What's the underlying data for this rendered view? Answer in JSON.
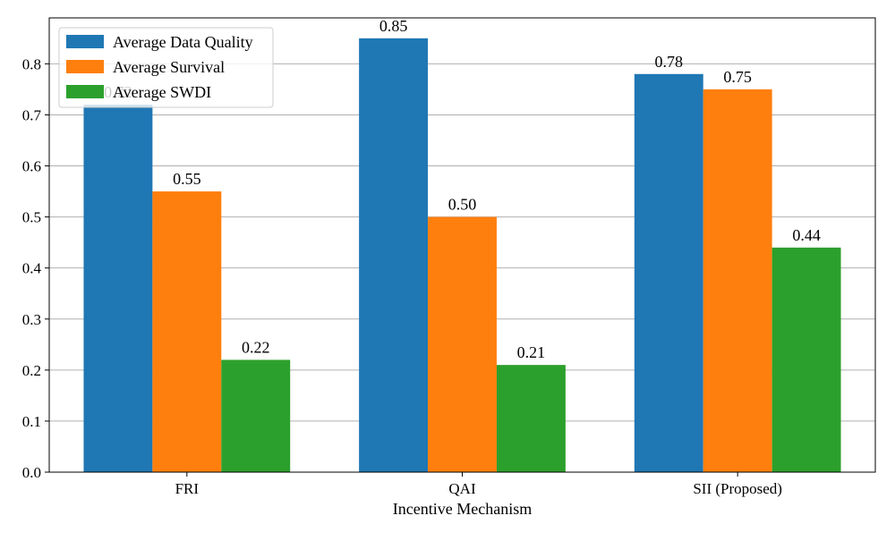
{
  "chart_data": {
    "type": "bar",
    "title": "",
    "xlabel": "Incentive Mechanism",
    "ylabel": "",
    "categories": [
      "FRI",
      "QAI",
      "SII (Proposed)"
    ],
    "series": [
      {
        "name": "Average Data Quality",
        "values": [
          0.72,
          0.85,
          0.78
        ],
        "labels": [
          "0.72",
          "0.85",
          "0.78"
        ],
        "color": "#1f77b4"
      },
      {
        "name": "Average Survival",
        "values": [
          0.55,
          0.5,
          0.75
        ],
        "labels": [
          "0.55",
          "0.50",
          "0.75"
        ],
        "color": "#ff7f0e"
      },
      {
        "name": "Average SWDI",
        "values": [
          0.22,
          0.21,
          0.44
        ],
        "labels": [
          "0.22",
          "0.21",
          "0.44"
        ],
        "color": "#2ca02c"
      }
    ],
    "ylim": [
      0,
      0.89
    ],
    "yticks": [
      0.0,
      0.1,
      0.2,
      0.3,
      0.4,
      0.5,
      0.6,
      0.7,
      0.8
    ],
    "ytick_labels": [
      "0.0",
      "0.1",
      "0.2",
      "0.3",
      "0.4",
      "0.5",
      "0.6",
      "0.7",
      "0.8"
    ],
    "grid": "horizontal",
    "legend_position": "top-left"
  }
}
